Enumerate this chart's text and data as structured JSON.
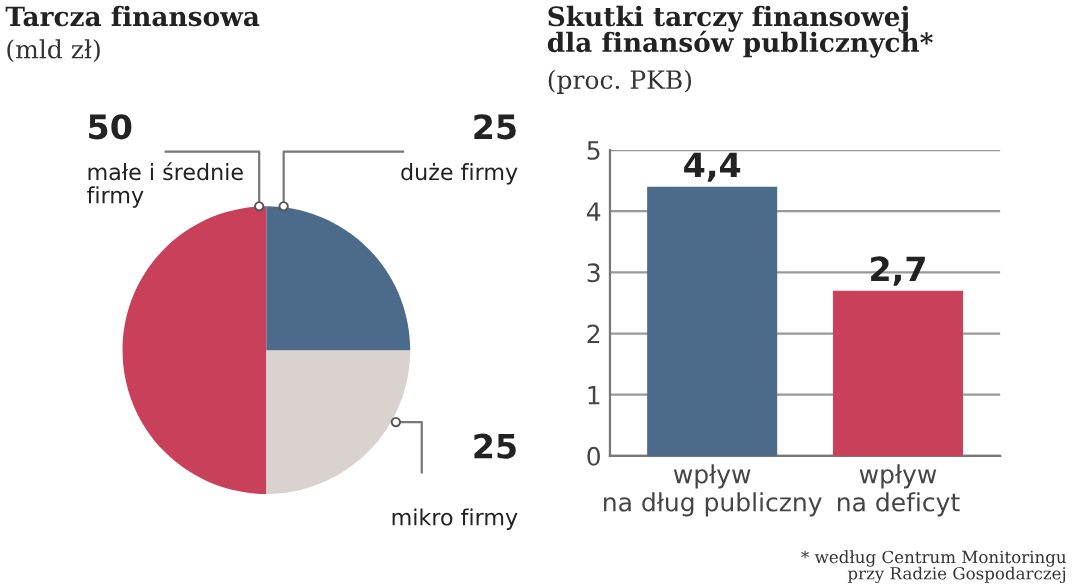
{
  "chart_data": [
    {
      "type": "pie",
      "title": "Tarcza finansowa",
      "subtitle": "(mld zł)",
      "categories": [
        "małe i średnie\nfirmy",
        "mikro firmy",
        "duże firmy"
      ],
      "values": [
        50,
        25,
        25
      ],
      "colors": [
        "#c9405a",
        "#d9d2cf",
        "#4c6b8a"
      ],
      "data_labels": true
    },
    {
      "type": "bar",
      "title": "Skutki tarczy finansowej\ndla finansów publicznych*",
      "subtitle": "(proc. PKB)",
      "categories": [
        "wpływ\nna dług publiczny",
        "wpływ\nna deficyt"
      ],
      "values": [
        4.4,
        2.7
      ],
      "colors": [
        "#4c6b8a",
        "#c9405a"
      ],
      "value_labels": [
        "4,4",
        "2,7"
      ],
      "ylim": [
        0,
        5
      ],
      "yticks": [
        0,
        1,
        2,
        3,
        4,
        5
      ],
      "grid": "y",
      "annotations": [
        "* według Centrum Monitoringu\nprzy Radzie Gospodarczej"
      ]
    }
  ]
}
